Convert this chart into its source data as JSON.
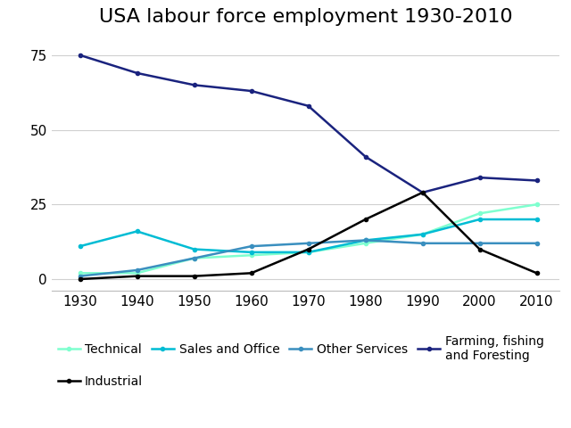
{
  "title": "USA labour force employment 1930-2010",
  "years": [
    1930,
    1940,
    1950,
    1960,
    1970,
    1980,
    1990,
    2000,
    2010
  ],
  "series": [
    {
      "label": "Technical",
      "values": [
        2,
        2,
        7,
        8,
        9,
        12,
        15,
        22,
        25
      ],
      "color": "#7fffcf",
      "linewidth": 1.8,
      "marker": "o",
      "markersize": 3
    },
    {
      "label": "Sales and Office",
      "values": [
        11,
        16,
        10,
        9,
        9,
        13,
        15,
        20,
        20
      ],
      "color": "#00bcd4",
      "linewidth": 1.8,
      "marker": "o",
      "markersize": 3
    },
    {
      "label": "Other Services",
      "values": [
        1,
        3,
        7,
        11,
        12,
        13,
        12,
        12,
        12
      ],
      "color": "#3a8fbf",
      "linewidth": 1.8,
      "marker": "o",
      "markersize": 3
    },
    {
      "label": "Farming, fishing\nand Foresting",
      "values": [
        75,
        69,
        65,
        63,
        58,
        41,
        29,
        34,
        33
      ],
      "color": "#1a237e",
      "linewidth": 1.8,
      "marker": "o",
      "markersize": 3
    },
    {
      "label": "Industrial",
      "values": [
        0,
        1,
        1,
        2,
        10,
        20,
        29,
        10,
        2
      ],
      "color": "#000000",
      "linewidth": 1.8,
      "marker": "o",
      "markersize": 3
    }
  ],
  "ylim": [
    -4,
    82
  ],
  "yticks": [
    0,
    25,
    50,
    75
  ],
  "background_color": "#ffffff",
  "grid_color": "#d0d0d0",
  "title_fontsize": 16,
  "tick_fontsize": 11,
  "legend_fontsize": 10
}
